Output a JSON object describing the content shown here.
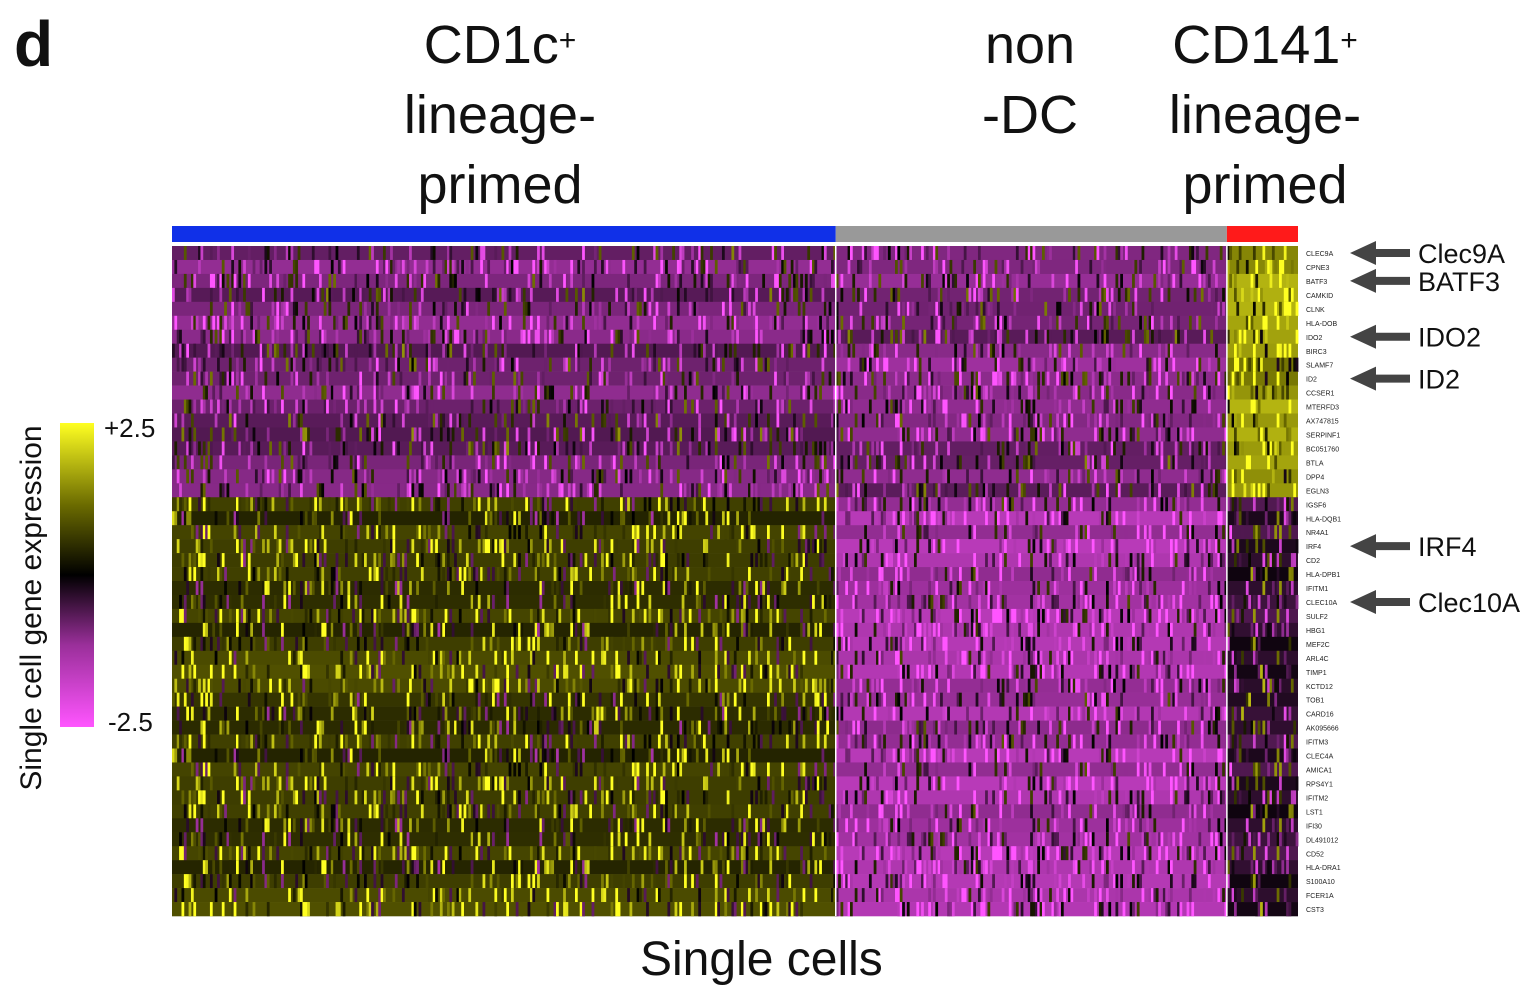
{
  "panel_label": "d",
  "chart_data": {
    "type": "heatmap",
    "xlabel": "Single cells",
    "colorbar": {
      "label": "Single cell gene expression",
      "max_label": "+2.5",
      "min_label": "-2.5",
      "range": [
        -2.5,
        2.5
      ],
      "colors": [
        "#ff55ff",
        "#9a2f9a",
        "#000000",
        "#6b6b00",
        "#ffff22"
      ]
    },
    "groups": [
      {
        "key": "cd1c",
        "title_lines": [
          "CD1c",
          "lineage-",
          "primed"
        ],
        "title_sup": "+",
        "color": "#1030e8",
        "cells": 280
      },
      {
        "key": "nondc",
        "title_lines": [
          "non",
          "-DC"
        ],
        "title_sup": "",
        "color": "#999999",
        "cells": 165
      },
      {
        "key": "cd141",
        "title_lines": [
          "CD141",
          "lineage-",
          "primed"
        ],
        "title_sup": "+",
        "color": "#ff1a1a",
        "cells": 30
      }
    ],
    "genes": [
      "CLEC9A",
      "CPNE3",
      "BATF3",
      "CAMKID",
      "CLNK",
      "HLA-DOB",
      "IDO2",
      "BIRC3",
      "SLAMF7",
      "ID2",
      "CCSER1",
      "MTERFD3",
      "AX747815",
      "SERPINF1",
      "BC051760",
      "BTLA",
      "DPP4",
      "EGLN3",
      "IGSF6",
      "HLA-DQB1",
      "NR4A1",
      "IRF4",
      "CD2",
      "HLA-DPB1",
      "IFITM1",
      "CLEC10A",
      "SULF2",
      "HBG1",
      "MEF2C",
      "ARL4C",
      "TIMP1",
      "KCTD12",
      "TOB1",
      "CARD16",
      "AK095666",
      "IFITM3",
      "CLEC4A",
      "AMICA1",
      "RPS4Y1",
      "IFITM2",
      "LST1",
      "IFI30",
      "DL491012",
      "CD52",
      "HLA-DRA1",
      "S100A10",
      "FCER1A",
      "CST3"
    ],
    "gene_blocks": [
      {
        "genes": "CLEC9A–EGLN3",
        "mean_z": {
          "cd1c": -0.9,
          "nondc": -1.0,
          "cd141": 1.6
        }
      },
      {
        "genes": "IGSF6–CST3",
        "mean_z": {
          "cd1c": 0.7,
          "nondc": -1.4,
          "cd141": -0.4
        }
      }
    ],
    "highlighted_genes": [
      {
        "gene": "CLEC9A",
        "label": "Clec9A"
      },
      {
        "gene": "BATF3",
        "label": "BATF3"
      },
      {
        "gene": "IDO2",
        "label": "IDO2"
      },
      {
        "gene": "ID2",
        "label": "ID2"
      },
      {
        "gene": "IRF4",
        "label": "IRF4"
      },
      {
        "gene": "CLEC10A",
        "label": "Clec10A"
      }
    ]
  }
}
